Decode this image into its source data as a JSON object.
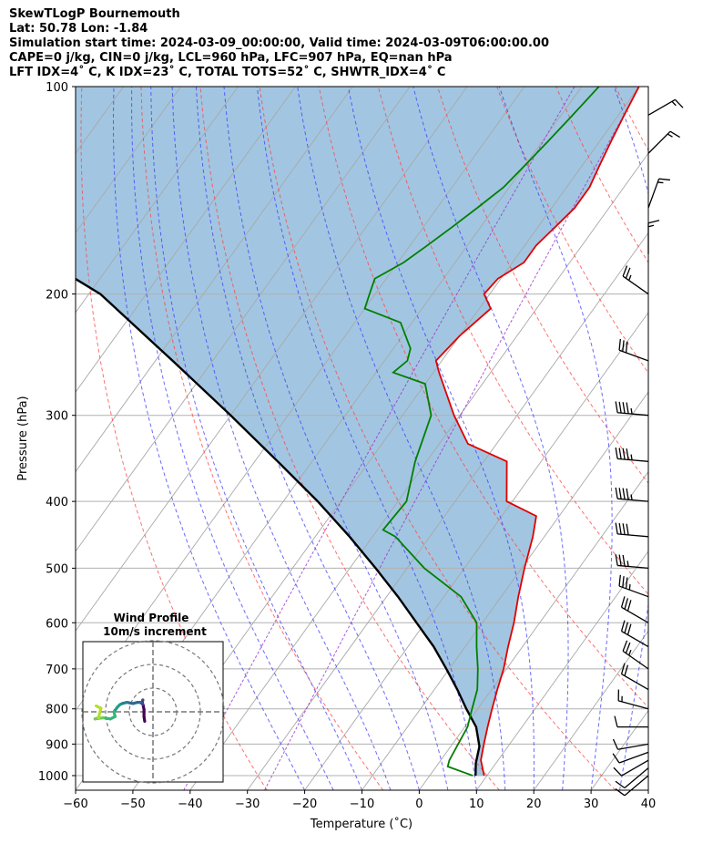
{
  "header": {
    "title": "SkewTLogP Bournemouth",
    "location": "Lat: 50.78   Lon: -1.84",
    "times": "Simulation start time: 2024-03-09_00:00:00, Valid time: 2024-03-09T06:00:00.00",
    "indices1": "CAPE=0 j/kg, CIN=0 j/kg, LCL=960 hPa, LFC=907 hPa, EQ=nan hPa",
    "indices2": "LFT IDX=4˚ C, K IDX=23˚ C, TOTAL TOTS=52˚ C, SHWTR_IDX=4˚ C"
  },
  "chart_data": {
    "type": "line",
    "title": "SkewTLogP Bournemouth",
    "xlabel": "Temperature (˚C)",
    "ylabel": "Pressure (hPa)",
    "xlim": [
      -60,
      40
    ],
    "ylim": [
      1050,
      100
    ],
    "x_ticks": [
      "−60",
      "−50",
      "−40",
      "−30",
      "−20",
      "−10",
      "0",
      "10",
      "20",
      "30",
      "40"
    ],
    "y_ticks": [
      "100",
      "200",
      "300",
      "400",
      "500",
      "600",
      "700",
      "800",
      "900",
      "1000"
    ],
    "series": [
      {
        "name": "Temperature",
        "color": "#e00000",
        "points": [
          [
            9.5,
            1000
          ],
          [
            7.0,
            950
          ],
          [
            5.5,
            900
          ],
          [
            4.0,
            850
          ],
          [
            2.5,
            800
          ],
          [
            1.0,
            750
          ],
          [
            -0.5,
            700
          ],
          [
            -2.5,
            650
          ],
          [
            -4.5,
            600
          ],
          [
            -7.0,
            550
          ],
          [
            -9.5,
            500
          ],
          [
            -12.0,
            450
          ],
          [
            -14.0,
            420
          ],
          [
            -21.0,
            400
          ],
          [
            -26.0,
            350
          ],
          [
            -35.0,
            330
          ],
          [
            -41.0,
            300
          ],
          [
            -49.0,
            260
          ],
          [
            -51.0,
            250
          ],
          [
            -50.0,
            230
          ],
          [
            -48.0,
            210
          ],
          [
            -51.0,
            200
          ],
          [
            -50.5,
            190
          ],
          [
            -48.0,
            180
          ],
          [
            -48.0,
            170
          ],
          [
            -47.0,
            160
          ],
          [
            -46.0,
            150
          ],
          [
            -46.0,
            140
          ],
          [
            -47.0,
            130
          ],
          [
            -48.0,
            120
          ],
          [
            -49.0,
            110
          ],
          [
            -50.0,
            100
          ]
        ]
      },
      {
        "name": "Dewpoint",
        "color": "#007f00",
        "points": [
          [
            7.5,
            1000
          ],
          [
            2.0,
            970
          ],
          [
            1.5,
            950
          ],
          [
            1.0,
            900
          ],
          [
            0.5,
            850
          ],
          [
            -1.0,
            800
          ],
          [
            -2.5,
            750
          ],
          [
            -5.0,
            700
          ],
          [
            -8.0,
            650
          ],
          [
            -11.0,
            600
          ],
          [
            -17.0,
            550
          ],
          [
            -27.0,
            500
          ],
          [
            -36.0,
            450
          ],
          [
            -39.0,
            440
          ],
          [
            -38.5,
            400
          ],
          [
            -42.0,
            350
          ],
          [
            -45.0,
            300
          ],
          [
            -50.0,
            270
          ],
          [
            -57.0,
            260
          ],
          [
            -56.0,
            250
          ],
          [
            -57.0,
            240
          ],
          [
            -62.0,
            220
          ],
          [
            -70.0,
            210
          ],
          [
            -71.0,
            200
          ],
          [
            -72.0,
            190
          ],
          [
            -69.0,
            180
          ],
          [
            -67.0,
            170
          ],
          [
            -65.0,
            160
          ],
          [
            -63.0,
            150
          ],
          [
            -61.0,
            140
          ],
          [
            -60.0,
            130
          ],
          [
            -59.0,
            120
          ],
          [
            -58.0,
            110
          ],
          [
            -57.0,
            100
          ]
        ]
      },
      {
        "name": "Parcel",
        "color": "#000000",
        "points": [
          [
            8.0,
            1000
          ],
          [
            6.5,
            960
          ],
          [
            5.0,
            907
          ],
          [
            2.0,
            850
          ],
          [
            -2.0,
            800
          ],
          [
            -6.0,
            750
          ],
          [
            -10.5,
            700
          ],
          [
            -15.5,
            650
          ],
          [
            -21.5,
            600
          ],
          [
            -28.0,
            550
          ],
          [
            -35.5,
            500
          ],
          [
            -44.0,
            450
          ],
          [
            -54.0,
            400
          ],
          [
            -66.0,
            350
          ],
          [
            -80.0,
            300
          ],
          [
            -97.0,
            250
          ],
          [
            -118.0,
            200
          ],
          [
            -131.0,
            180
          ],
          [
            -146.0,
            160
          ],
          [
            -162.0,
            140
          ],
          [
            -180.0,
            120
          ],
          [
            -201.0,
            100
          ]
        ]
      }
    ],
    "wind_barbs": [
      {
        "p": 1000,
        "speed_kt": 10,
        "dir_deg": 230
      },
      {
        "p": 975,
        "speed_kt": 10,
        "dir_deg": 230
      },
      {
        "p": 950,
        "speed_kt": 10,
        "dir_deg": 240
      },
      {
        "p": 925,
        "speed_kt": 10,
        "dir_deg": 250
      },
      {
        "p": 900,
        "speed_kt": 10,
        "dir_deg": 260
      },
      {
        "p": 850,
        "speed_kt": 10,
        "dir_deg": 270
      },
      {
        "p": 800,
        "speed_kt": 15,
        "dir_deg": 285
      },
      {
        "p": 750,
        "speed_kt": 20,
        "dir_deg": 300
      },
      {
        "p": 700,
        "speed_kt": 25,
        "dir_deg": 305
      },
      {
        "p": 650,
        "speed_kt": 30,
        "dir_deg": 300
      },
      {
        "p": 600,
        "speed_kt": 30,
        "dir_deg": 300
      },
      {
        "p": 550,
        "speed_kt": 35,
        "dir_deg": 290
      },
      {
        "p": 500,
        "speed_kt": 35,
        "dir_deg": 275
      },
      {
        "p": 450,
        "speed_kt": 40,
        "dir_deg": 275
      },
      {
        "p": 400,
        "speed_kt": 45,
        "dir_deg": 275
      },
      {
        "p": 350,
        "speed_kt": 45,
        "dir_deg": 275
      },
      {
        "p": 300,
        "speed_kt": 45,
        "dir_deg": 275
      },
      {
        "p": 250,
        "speed_kt": 30,
        "dir_deg": 290
      },
      {
        "p": 200,
        "speed_kt": 25,
        "dir_deg": 305
      },
      {
        "p": 175,
        "speed_kt": 15,
        "dir_deg": 0
      },
      {
        "p": 150,
        "speed_kt": 15,
        "dir_deg": 20
      },
      {
        "p": 125,
        "speed_kt": 15,
        "dir_deg": 45
      },
      {
        "p": 110,
        "speed_kt": 15,
        "dir_deg": 60
      }
    ],
    "hodograph": {
      "title": "Wind Profile",
      "subtitle": "10m/s increment",
      "ring_step_ms": 10,
      "points_uv": [
        [
          -3.5,
          -4
        ],
        [
          -3.8,
          -2
        ],
        [
          -3.8,
          1
        ],
        [
          -4.2,
          3
        ],
        [
          -4.6,
          4
        ],
        [
          -4.3,
          5
        ],
        [
          -4.6,
          3.5
        ],
        [
          -5.5,
          4
        ],
        [
          -6.5,
          4
        ],
        [
          -8.5,
          3.5
        ],
        [
          -11,
          4
        ],
        [
          -13,
          3.5
        ],
        [
          -14,
          3
        ],
        [
          -15,
          2
        ],
        [
          -16.5,
          0
        ],
        [
          -16,
          -2
        ],
        [
          -18,
          -3
        ],
        [
          -21,
          -2.5
        ],
        [
          -24.5,
          -3
        ],
        [
          -23,
          -2.5
        ],
        [
          -22,
          1.5
        ],
        [
          -24,
          2.5
        ]
      ],
      "colormap": "viridis"
    }
  }
}
